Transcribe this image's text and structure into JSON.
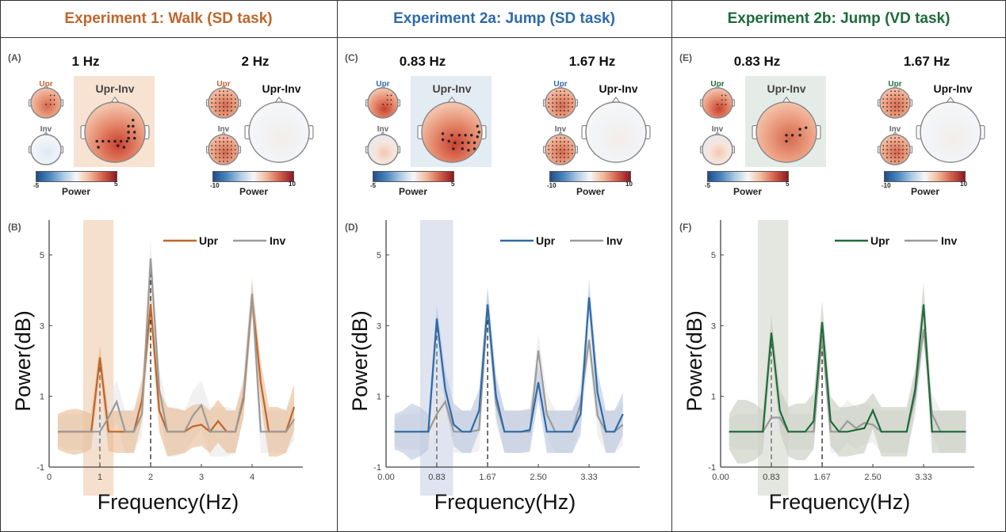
{
  "experiments": [
    {
      "title": "Experiment 1: Walk (SD task)",
      "color": "#c0652a",
      "topo_panel": {
        "label": "(A)",
        "maps": [
          {
            "freq_title": "1 Hz",
            "upr_label": "Upr",
            "inv_label": "Inv",
            "diff_label": "Upr-Inv",
            "diff_highlighted": true,
            "highlight_color": "#f8e3d3",
            "colorbar": {
              "min": "-5",
              "max": "5",
              "title": "Power"
            }
          },
          {
            "freq_title": "2 Hz",
            "upr_label": "Upr",
            "inv_label": "Inv",
            "diff_label": "Upr-Inv",
            "diff_highlighted": false,
            "colorbar": {
              "min": "-10",
              "max": "10",
              "title": "Power"
            }
          }
        ]
      },
      "spectrum_panel": {
        "label": "(B)"
      }
    },
    {
      "title": "Experiment 2a: Jump (SD task)",
      "color": "#2e6aa8",
      "topo_panel": {
        "label": "(C)",
        "maps": [
          {
            "freq_title": "0.83 Hz",
            "upr_label": "Upr",
            "inv_label": "Inv",
            "diff_label": "Upr-Inv",
            "diff_highlighted": true,
            "highlight_color": "#e3ebf3",
            "colorbar": {
              "min": "-5",
              "max": "5",
              "title": "Power"
            }
          },
          {
            "freq_title": "1.67 Hz",
            "upr_label": "Upr",
            "inv_label": "Inv",
            "diff_label": "Upr-Inv",
            "diff_highlighted": false,
            "colorbar": {
              "min": "-10",
              "max": "10",
              "title": "Power"
            }
          }
        ]
      },
      "spectrum_panel": {
        "label": "(D)"
      }
    },
    {
      "title": "Experiment 2b: Jump (VD task)",
      "color": "#1e6b3a",
      "topo_panel": {
        "label": "(E)",
        "maps": [
          {
            "freq_title": "0.83 Hz",
            "upr_label": "Upr",
            "inv_label": "Inv",
            "diff_label": "Upr-Inv",
            "diff_highlighted": true,
            "highlight_color": "#e5ebe6",
            "colorbar": {
              "min": "-5",
              "max": "5",
              "title": "Power"
            }
          },
          {
            "freq_title": "1.67 Hz",
            "upr_label": "Upr",
            "inv_label": "Inv",
            "diff_label": "Upr-Inv",
            "diff_highlighted": false,
            "colorbar": {
              "min": "-10",
              "max": "10",
              "title": "Power"
            }
          }
        ]
      },
      "spectrum_panel": {
        "label": "(F)"
      }
    }
  ],
  "chart_data": [
    {
      "type": "line",
      "panel": "(B)",
      "xlabel": "Frequency(Hz)",
      "ylabel": "Power(dB)",
      "xlim": [
        0,
        4.95
      ],
      "ylim": [
        -1,
        6
      ],
      "xticks": [
        0,
        1,
        2,
        3,
        4
      ],
      "xtick_labels": [
        "0",
        "1",
        "2",
        "3",
        "4"
      ],
      "yticks": [
        -1,
        1,
        3,
        5
      ],
      "ytick_labels": [
        "-1",
        "1",
        "3",
        "5"
      ],
      "legend": {
        "position": "top-right",
        "entries": [
          "Upr",
          "Inv"
        ]
      },
      "highlight_band": [
        0.67,
        1.27
      ],
      "dashed_lines": [
        1,
        2
      ],
      "x": [
        0.17,
        0.33,
        0.5,
        0.67,
        0.83,
        1.0,
        1.17,
        1.33,
        1.5,
        1.67,
        1.83,
        2.0,
        2.17,
        2.33,
        2.5,
        2.67,
        2.83,
        3.0,
        3.17,
        3.33,
        3.5,
        3.67,
        3.83,
        4.0,
        4.17,
        4.33,
        4.5,
        4.67,
        4.83
      ],
      "series": [
        {
          "name": "Upr",
          "color": "#c0652a",
          "band_color": "#e8b990",
          "values": [
            0,
            0,
            0,
            0,
            0,
            2.1,
            0,
            0,
            0,
            0,
            0.9,
            3.6,
            0.6,
            0,
            0,
            0,
            0.15,
            0.2,
            0,
            0.3,
            0,
            0,
            0.9,
            3.8,
            1.4,
            0,
            0,
            0,
            0.7
          ],
          "band_halfwidth": [
            0.5,
            0.6,
            0.65,
            0.6,
            0.5,
            0.35,
            0.55,
            0.6,
            0.6,
            0.6,
            0.6,
            0.5,
            0.6,
            0.7,
            0.65,
            0.6,
            0.6,
            0.6,
            0.6,
            0.6,
            0.6,
            0.6,
            0.5,
            0.5,
            0.6,
            0.7,
            0.7,
            0.6,
            0.65
          ]
        },
        {
          "name": "Inv",
          "color": "#9a9a9a",
          "band_color": "#e6e6e6",
          "values": [
            0,
            0,
            0,
            0,
            0,
            0,
            0.4,
            0.85,
            0,
            0,
            0.5,
            4.9,
            1.2,
            0,
            0,
            0,
            0.45,
            0.75,
            0,
            0,
            0,
            0,
            1.0,
            3.9,
            0,
            0,
            0,
            0,
            0.35
          ],
          "band_halfwidth": [
            0.4,
            0.5,
            0.5,
            0.5,
            0.5,
            0.4,
            0.6,
            0.6,
            0.6,
            0.6,
            0.6,
            0.6,
            0.6,
            0.7,
            0.7,
            0.6,
            0.7,
            0.7,
            0.7,
            0.7,
            0.7,
            0.6,
            0.6,
            0.5,
            0.6,
            0.6,
            0.6,
            0.6,
            0.6
          ]
        }
      ]
    },
    {
      "type": "line",
      "panel": "(D)",
      "xlabel": "Frequency(Hz)",
      "ylabel": "Power(dB)",
      "xlim": [
        0,
        4.1
      ],
      "ylim": [
        -1,
        6
      ],
      "xticks": [
        0,
        0.833,
        1.667,
        2.5,
        3.333
      ],
      "xtick_labels": [
        "0.00",
        "0.83",
        "1.67",
        "2.50",
        "3.33"
      ],
      "yticks": [
        -1,
        1,
        3,
        5
      ],
      "ytick_labels": [
        "-1",
        "1",
        "3",
        "5"
      ],
      "legend": {
        "position": "top-right",
        "entries": [
          "Upr",
          "Inv"
        ]
      },
      "highlight_band": [
        0.56,
        1.1
      ],
      "dashed_lines": [
        0.833,
        1.667
      ],
      "x": [
        0.139,
        0.278,
        0.417,
        0.556,
        0.694,
        0.833,
        0.972,
        1.111,
        1.25,
        1.389,
        1.528,
        1.667,
        1.806,
        1.944,
        2.083,
        2.222,
        2.361,
        2.5,
        2.639,
        2.778,
        2.917,
        3.056,
        3.194,
        3.333,
        3.472,
        3.611,
        3.75,
        3.889
      ],
      "series": [
        {
          "name": "Upr",
          "color": "#2e6aa8",
          "band_color": "#b8c4de",
          "values": [
            0,
            0,
            0,
            0,
            0,
            3.2,
            1.2,
            0.2,
            0,
            0,
            0.6,
            3.6,
            1.0,
            0,
            0,
            0,
            0.05,
            1.4,
            0,
            0,
            0,
            0,
            0.5,
            3.8,
            1.1,
            0,
            0,
            0.5
          ],
          "band_halfwidth": [
            0.5,
            0.6,
            0.8,
            0.7,
            0.5,
            0.4,
            0.5,
            0.6,
            0.6,
            0.6,
            0.6,
            0.5,
            0.6,
            0.6,
            0.6,
            0.6,
            0.6,
            0.5,
            0.6,
            0.6,
            0.6,
            0.6,
            0.6,
            0.5,
            0.6,
            0.6,
            0.6,
            0.6
          ]
        },
        {
          "name": "Inv",
          "color": "#9a9a9a",
          "band_color": "#e6e6e6",
          "values": [
            0,
            0,
            0,
            0,
            0,
            0.5,
            0.85,
            0,
            0,
            0,
            0.05,
            3.6,
            0.8,
            0,
            0,
            0,
            0,
            2.3,
            0.5,
            0,
            0,
            0,
            0.8,
            2.6,
            0.45,
            0,
            0,
            0.2
          ],
          "band_halfwidth": [
            0.4,
            0.5,
            0.5,
            0.5,
            0.5,
            0.5,
            0.5,
            0.6,
            0.6,
            0.6,
            0.6,
            0.5,
            0.6,
            0.6,
            0.6,
            0.6,
            0.6,
            0.5,
            0.6,
            0.6,
            0.6,
            0.6,
            0.6,
            0.5,
            0.6,
            0.6,
            0.6,
            0.6
          ]
        }
      ]
    },
    {
      "type": "line",
      "panel": "(F)",
      "xlabel": "Frequency(Hz)",
      "ylabel": "Power(dB)",
      "xlim": [
        0,
        4.1
      ],
      "ylim": [
        -1,
        6
      ],
      "xticks": [
        0,
        0.833,
        1.667,
        2.5,
        3.333
      ],
      "xtick_labels": [
        "0.00",
        "0.83",
        "1.67",
        "2.50",
        "3.33"
      ],
      "yticks": [
        -1,
        1,
        3,
        5
      ],
      "ytick_labels": [
        "-1",
        "1",
        "3",
        "5"
      ],
      "legend": {
        "position": "top-right",
        "entries": [
          "Upr",
          "Inv"
        ]
      },
      "highlight_band": [
        0.61,
        1.11
      ],
      "dashed_lines": [
        0.833,
        1.667
      ],
      "x": [
        0.139,
        0.278,
        0.417,
        0.556,
        0.694,
        0.833,
        0.972,
        1.111,
        1.25,
        1.389,
        1.528,
        1.667,
        1.806,
        1.944,
        2.083,
        2.222,
        2.361,
        2.5,
        2.639,
        2.778,
        2.917,
        3.056,
        3.194,
        3.333,
        3.472,
        3.611,
        3.75,
        3.889,
        4.028
      ],
      "series": [
        {
          "name": "Upr",
          "color": "#1e6b3a",
          "band_color": "#c4c9bb",
          "values": [
            0,
            0,
            0,
            0,
            0,
            2.8,
            0.6,
            0,
            0,
            0,
            0.3,
            3.1,
            0.3,
            0,
            0,
            0.05,
            0.1,
            0.6,
            0,
            0,
            0,
            0,
            1.2,
            3.6,
            0,
            0,
            0,
            0,
            0
          ],
          "band_halfwidth": [
            0.5,
            0.9,
            0.9,
            0.8,
            0.6,
            0.5,
            0.6,
            0.7,
            0.8,
            0.8,
            0.8,
            0.6,
            0.7,
            0.7,
            0.7,
            0.7,
            0.7,
            0.5,
            0.7,
            0.7,
            0.7,
            0.7,
            0.6,
            0.6,
            0.6,
            0.6,
            0.6,
            0.6,
            0.6
          ]
        },
        {
          "name": "Inv",
          "color": "#9a9a9a",
          "band_color": "#e6e6e6",
          "values": [
            0,
            0,
            0,
            0,
            0,
            0.4,
            0.4,
            0,
            0,
            0,
            0,
            2.7,
            0,
            0,
            0.3,
            0.1,
            0.25,
            0.2,
            0,
            0,
            0,
            0,
            1.0,
            2.9,
            0.5,
            0,
            0,
            0,
            0
          ],
          "band_halfwidth": [
            0.4,
            0.5,
            0.5,
            0.5,
            0.5,
            0.5,
            0.5,
            0.5,
            0.5,
            0.5,
            0.5,
            0.5,
            0.6,
            0.6,
            0.6,
            0.6,
            0.6,
            0.5,
            0.6,
            0.6,
            0.6,
            0.6,
            0.6,
            0.6,
            0.6,
            0.6,
            0.6,
            0.6,
            0.6
          ]
        }
      ]
    }
  ]
}
